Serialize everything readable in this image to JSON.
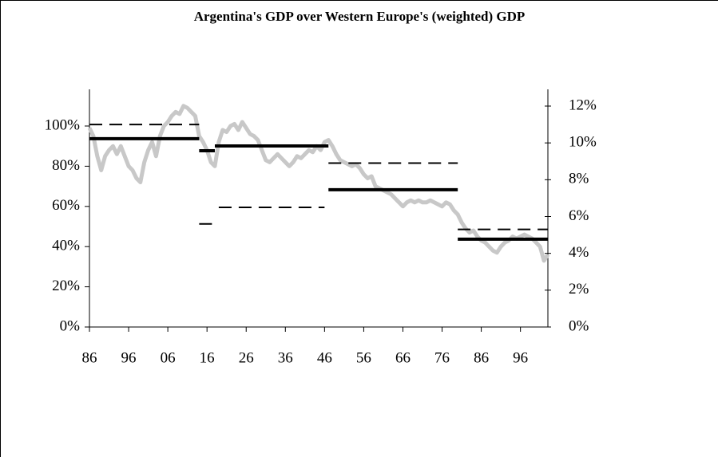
{
  "chart_data": {
    "type": "line-segments",
    "title": "Argentina's GDP over Western Europe's (weighted) GDP",
    "xlim": [
      1886,
      2003
    ],
    "xticks": [
      {
        "value": 1886,
        "label": "86"
      },
      {
        "value": 1896,
        "label": "96"
      },
      {
        "value": 1906,
        "label": "06"
      },
      {
        "value": 1916,
        "label": "16"
      },
      {
        "value": 1926,
        "label": "26"
      },
      {
        "value": 1936,
        "label": "36"
      },
      {
        "value": 1946,
        "label": "46"
      },
      {
        "value": 1956,
        "label": "56"
      },
      {
        "value": 1966,
        "label": "66"
      },
      {
        "value": 1976,
        "label": "76"
      },
      {
        "value": 1986,
        "label": "86"
      },
      {
        "value": 1996,
        "label": "96"
      }
    ],
    "ylim": [
      0,
      118.25
    ],
    "yticks": [
      {
        "value": 0,
        "label": "0%"
      },
      {
        "value": 20,
        "label": "20%"
      },
      {
        "value": 40,
        "label": "40%"
      },
      {
        "value": 60,
        "label": "60%"
      },
      {
        "value": 80,
        "label": "80%"
      },
      {
        "value": 100,
        "label": "100%"
      }
    ],
    "y2lim": [
      0,
      12.91
    ],
    "y2ticks": [
      {
        "value": 0,
        "label": "0%"
      },
      {
        "value": 2,
        "label": "2%"
      },
      {
        "value": 4,
        "label": "4%"
      },
      {
        "value": 6,
        "label": "6%"
      },
      {
        "value": 8,
        "label": "8%"
      },
      {
        "value": 10,
        "label": "10%"
      },
      {
        "value": 12,
        "label": "12%"
      }
    ],
    "line": {
      "color": "#c8c8c8",
      "x": [
        1886,
        1887,
        1888,
        1889,
        1890,
        1891,
        1892,
        1893,
        1894,
        1895,
        1896,
        1897,
        1898,
        1899,
        1900,
        1901,
        1902,
        1903,
        1904,
        1905,
        1906,
        1907,
        1908,
        1909,
        1910,
        1911,
        1912,
        1913,
        1914,
        1915,
        1916,
        1917,
        1918,
        1919,
        1920,
        1921,
        1922,
        1923,
        1924,
        1925,
        1926,
        1927,
        1928,
        1929,
        1930,
        1931,
        1932,
        1933,
        1934,
        1935,
        1936,
        1937,
        1938,
        1939,
        1940,
        1941,
        1942,
        1943,
        1944,
        1945,
        1946,
        1947,
        1948,
        1949,
        1950,
        1951,
        1952,
        1953,
        1954,
        1955,
        1956,
        1957,
        1958,
        1959,
        1960,
        1961,
        1962,
        1963,
        1964,
        1965,
        1966,
        1967,
        1968,
        1969,
        1970,
        1971,
        1972,
        1973,
        1974,
        1975,
        1976,
        1977,
        1978,
        1979,
        1980,
        1981,
        1982,
        1983,
        1984,
        1985,
        1986,
        1987,
        1988,
        1989,
        1990,
        1991,
        1992,
        1993,
        1994,
        1995,
        1996,
        1997,
        1998,
        1999,
        2000,
        2001,
        2002,
        2003
      ],
      "values": [
        99,
        95,
        85,
        78,
        85,
        88,
        90,
        86,
        90,
        85,
        80,
        78,
        74,
        72,
        82,
        88,
        92,
        85,
        95,
        100,
        102,
        105,
        107,
        106,
        110,
        109,
        107,
        105,
        95,
        92,
        88,
        82,
        80,
        92,
        98,
        97,
        100,
        101,
        98,
        102,
        99,
        96,
        95,
        93,
        88,
        83,
        82,
        84,
        86,
        84,
        82,
        80,
        82,
        85,
        84,
        86,
        88,
        87,
        90,
        88,
        92,
        93,
        90,
        86,
        83,
        82,
        81,
        80,
        81,
        79,
        76,
        74,
        75,
        70,
        69,
        68,
        67,
        66,
        64,
        62,
        60,
        62,
        63,
        62,
        63,
        62,
        62,
        63,
        62,
        61,
        60,
        62,
        61,
        58,
        56,
        52,
        49,
        47,
        48,
        45,
        43,
        42,
        40,
        38,
        37,
        40,
        42,
        43,
        45,
        44,
        45,
        46,
        45,
        44,
        42,
        40,
        33,
        36
      ]
    },
    "solid_segments": {
      "color": "#000000",
      "segments": [
        {
          "x": [
            1886,
            1914
          ],
          "value": 93.7
        },
        {
          "x": [
            1914,
            1918
          ],
          "value": 87.7
        },
        {
          "x": [
            1918,
            1947
          ],
          "value": 90.1
        },
        {
          "x": [
            1947,
            1980
          ],
          "value": 68.3
        },
        {
          "x": [
            1980,
            2003
          ],
          "value": 43.7
        }
      ]
    },
    "dashed_segments": {
      "color": "#000000",
      "axis": "y2",
      "segments": [
        {
          "x": [
            1886,
            1914
          ],
          "value": 11.0
        },
        {
          "x": [
            1914,
            1918
          ],
          "value": 5.6
        },
        {
          "x": [
            1919,
            1946
          ],
          "value": 6.5
        },
        {
          "x": [
            1947,
            1980
          ],
          "value": 8.9
        },
        {
          "x": [
            1980,
            2003
          ],
          "value": 5.3
        }
      ]
    }
  }
}
